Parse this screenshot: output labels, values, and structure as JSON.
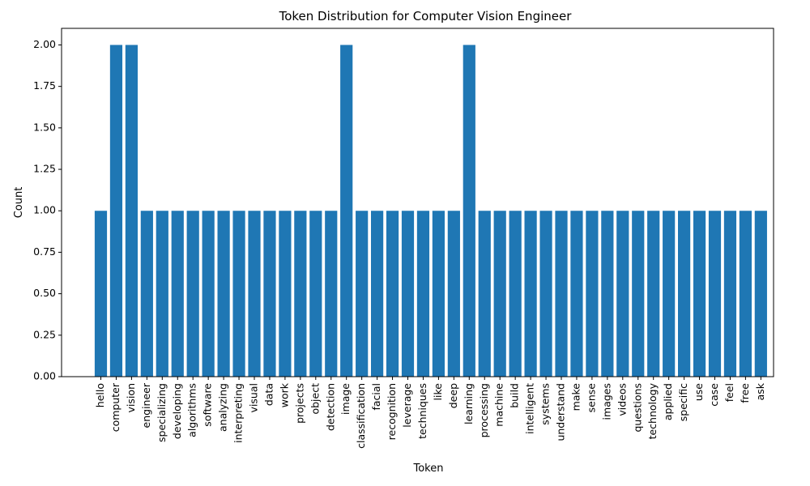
{
  "chart_data": {
    "type": "bar",
    "title": "Token Distribution for Computer Vision Engineer",
    "xlabel": "Token",
    "ylabel": "Count",
    "ylim": [
      0,
      2.1
    ],
    "yticks": [
      "0.00",
      "0.25",
      "0.50",
      "0.75",
      "1.00",
      "1.25",
      "1.50",
      "1.75",
      "2.00"
    ],
    "grid": false,
    "bar_color": "#1f77b4",
    "categories": [
      "hello",
      "computer",
      "vision",
      "engineer",
      "specializing",
      "developing",
      "algorithms",
      "software",
      "analyzing",
      "interpreting",
      "visual",
      "data",
      "work",
      "projects",
      "object",
      "detection",
      "image",
      "classification",
      "facial",
      "recognition",
      "leverage",
      "techniques",
      "like",
      "deep",
      "learning",
      "processing",
      "machine",
      "build",
      "intelligent",
      "systems",
      "understand",
      "make",
      "sense",
      "images",
      "videos",
      "questions",
      "technology",
      "applied",
      "specific",
      "use",
      "case",
      "feel",
      "free",
      "ask"
    ],
    "values": [
      1,
      2,
      2,
      1,
      1,
      1,
      1,
      1,
      1,
      1,
      1,
      1,
      1,
      1,
      1,
      1,
      2,
      1,
      1,
      1,
      1,
      1,
      1,
      1,
      2,
      1,
      1,
      1,
      1,
      1,
      1,
      1,
      1,
      1,
      1,
      1,
      1,
      1,
      1,
      1,
      1,
      1,
      1,
      1
    ]
  }
}
